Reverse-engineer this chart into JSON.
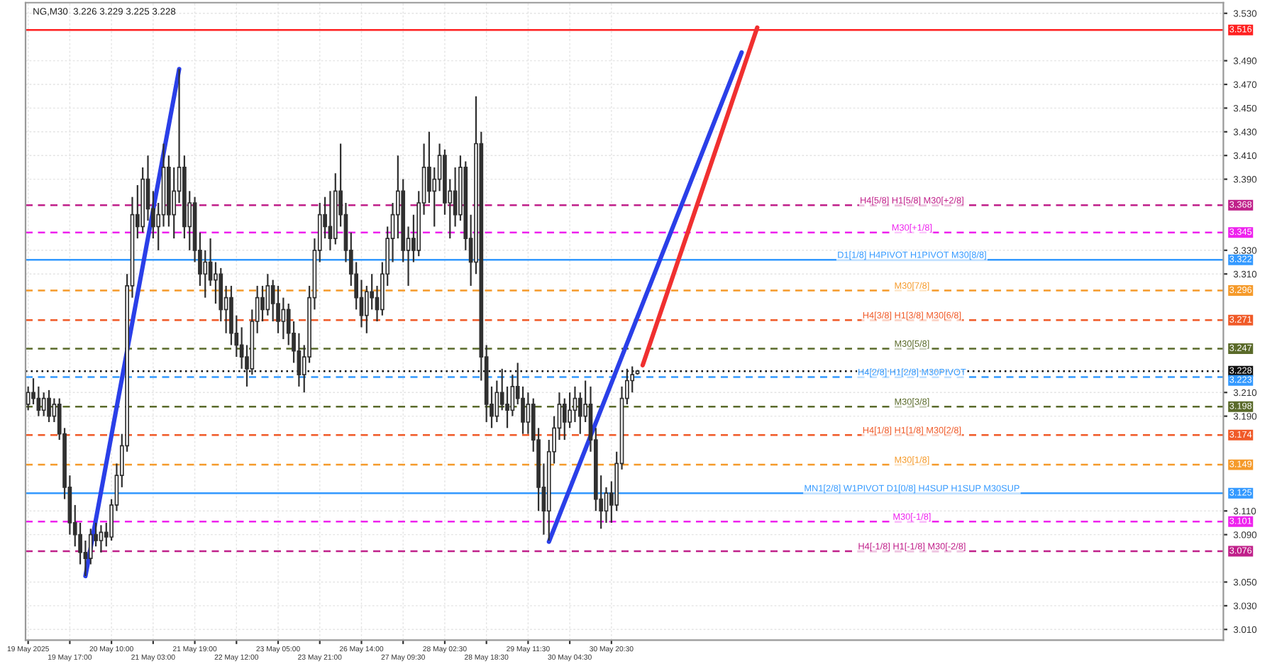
{
  "chart_data": {
    "type": "candlestick",
    "title": "NG,M30  3.226 3.229 3.225 3.228",
    "categories": [
      "19 May 2025",
      null,
      null,
      null,
      null,
      null,
      null,
      null,
      "19 May 17:00",
      null,
      null,
      null,
      null,
      null,
      null,
      null,
      "20 May 10:00",
      null,
      null,
      null,
      null,
      null,
      null,
      null,
      "21 May 03:00",
      null,
      null,
      null,
      null,
      null,
      null,
      null,
      "21 May 19:00",
      null,
      null,
      null,
      null,
      null,
      null,
      null,
      "22 May 12:00",
      null,
      null,
      null,
      null,
      null,
      null,
      null,
      "23 May 05:00",
      null,
      null,
      null,
      null,
      null,
      null,
      null,
      "23 May 21:00",
      null,
      null,
      null,
      null,
      null,
      null,
      null,
      "26 May 14:00",
      null,
      null,
      null,
      null,
      null,
      null,
      null,
      "27 May 09:30",
      null,
      null,
      null,
      null,
      null,
      null,
      null,
      "28 May 02:30",
      null,
      null,
      null,
      null,
      null,
      null,
      null,
      "28 May 18:30",
      null,
      null,
      null,
      null,
      null,
      null,
      null,
      "29 May 11:30",
      null,
      null,
      null,
      null,
      null,
      null,
      null,
      "30 May 04:30",
      null,
      null,
      null,
      null,
      null,
      null,
      null,
      "30 May 20:30",
      null,
      null,
      null,
      null,
      null,
      null,
      null,
      null,
      null,
      null,
      null,
      null,
      null,
      null,
      null,
      null,
      null,
      null,
      null,
      null,
      null,
      null,
      null,
      null,
      null,
      null,
      null,
      null,
      null,
      null,
      null,
      null,
      null,
      null,
      null,
      null,
      null,
      null,
      null,
      null,
      null,
      null,
      null,
      null,
      null,
      null,
      null,
      null,
      null,
      null,
      null,
      null,
      null,
      null,
      null,
      null,
      null,
      null,
      null,
      null,
      null,
      null,
      null,
      null,
      null,
      null,
      null,
      null,
      null,
      null,
      null,
      null,
      null,
      null,
      null,
      null,
      null,
      null,
      null,
      null,
      null,
      null,
      null,
      null,
      null,
      null,
      null,
      null,
      null,
      null,
      null,
      null,
      null,
      null,
      null,
      null,
      null,
      null,
      null,
      null,
      null,
      null,
      null,
      null,
      null,
      null,
      null,
      null,
      null,
      null,
      null,
      null,
      null,
      null,
      null,
      null,
      null
    ],
    "color": "#303030",
    "ohlc": [
      [
        3.2,
        3.215,
        3.195,
        3.21
      ],
      [
        3.21,
        3.222,
        3.2,
        3.205
      ],
      [
        3.205,
        3.215,
        3.19,
        3.195
      ],
      [
        3.195,
        3.21,
        3.19,
        3.205
      ],
      [
        3.205,
        3.212,
        3.185,
        3.19
      ],
      [
        3.19,
        3.205,
        3.185,
        3.2
      ],
      [
        3.2,
        3.205,
        3.17,
        3.175
      ],
      [
        3.175,
        3.18,
        3.12,
        3.13
      ],
      [
        3.13,
        3.14,
        3.09,
        3.1
      ],
      [
        3.1,
        3.115,
        3.08,
        3.09
      ],
      [
        3.09,
        3.1,
        3.065,
        3.075
      ],
      [
        3.075,
        3.085,
        3.055,
        3.07
      ],
      [
        3.07,
        3.095,
        3.065,
        3.09
      ],
      [
        3.09,
        3.1,
        3.08,
        3.085
      ],
      [
        3.085,
        3.098,
        3.075,
        3.092
      ],
      [
        3.092,
        3.1,
        3.08,
        3.088
      ],
      [
        3.088,
        3.12,
        3.085,
        3.115
      ],
      [
        3.115,
        3.15,
        3.11,
        3.14
      ],
      [
        3.14,
        3.175,
        3.13,
        3.165
      ],
      [
        3.165,
        3.31,
        3.16,
        3.3
      ],
      [
        3.3,
        3.375,
        3.29,
        3.36
      ],
      [
        3.36,
        3.385,
        3.34,
        3.35
      ],
      [
        3.35,
        3.4,
        3.345,
        3.39
      ],
      [
        3.39,
        3.41,
        3.355,
        3.365
      ],
      [
        3.365,
        3.38,
        3.34,
        3.35
      ],
      [
        3.35,
        3.37,
        3.33,
        3.36
      ],
      [
        3.36,
        3.42,
        3.35,
        3.4
      ],
      [
        3.4,
        3.41,
        3.35,
        3.36
      ],
      [
        3.36,
        3.4,
        3.34,
        3.38
      ],
      [
        3.38,
        3.483,
        3.37,
        3.4
      ],
      [
        3.4,
        3.41,
        3.34,
        3.35
      ],
      [
        3.35,
        3.38,
        3.33,
        3.37
      ],
      [
        3.37,
        3.375,
        3.32,
        3.33
      ],
      [
        3.33,
        3.345,
        3.3,
        3.31
      ],
      [
        3.31,
        3.33,
        3.29,
        3.32
      ],
      [
        3.32,
        3.34,
        3.3,
        3.305
      ],
      [
        3.305,
        3.32,
        3.285,
        3.31
      ],
      [
        3.31,
        3.315,
        3.27,
        3.28
      ],
      [
        3.28,
        3.3,
        3.26,
        3.29
      ],
      [
        3.29,
        3.3,
        3.25,
        3.26
      ],
      [
        3.26,
        3.275,
        3.24,
        3.25
      ],
      [
        3.25,
        3.265,
        3.23,
        3.24
      ],
      [
        3.24,
        3.25,
        3.215,
        3.23
      ],
      [
        3.23,
        3.28,
        3.225,
        3.27
      ],
      [
        3.27,
        3.3,
        3.26,
        3.29
      ],
      [
        3.29,
        3.3,
        3.27,
        3.28
      ],
      [
        3.28,
        3.31,
        3.275,
        3.3
      ],
      [
        3.3,
        3.305,
        3.27,
        3.285
      ],
      [
        3.285,
        3.3,
        3.26,
        3.27
      ],
      [
        3.27,
        3.29,
        3.255,
        3.28
      ],
      [
        3.28,
        3.285,
        3.25,
        3.26
      ],
      [
        3.26,
        3.27,
        3.235,
        3.245
      ],
      [
        3.245,
        3.26,
        3.215,
        3.225
      ],
      [
        3.225,
        3.25,
        3.21,
        3.24
      ],
      [
        3.24,
        3.3,
        3.235,
        3.29
      ],
      [
        3.29,
        3.34,
        3.28,
        3.33
      ],
      [
        3.33,
        3.37,
        3.32,
        3.36
      ],
      [
        3.36,
        3.375,
        3.34,
        3.35
      ],
      [
        3.35,
        3.38,
        3.33,
        3.34
      ],
      [
        3.34,
        3.395,
        3.335,
        3.38
      ],
      [
        3.38,
        3.42,
        3.35,
        3.36
      ],
      [
        3.36,
        3.37,
        3.32,
        3.33
      ],
      [
        3.33,
        3.345,
        3.3,
        3.31
      ],
      [
        3.31,
        3.32,
        3.28,
        3.29
      ],
      [
        3.29,
        3.305,
        3.265,
        3.275
      ],
      [
        3.275,
        3.3,
        3.26,
        3.295
      ],
      [
        3.295,
        3.31,
        3.28,
        3.29
      ],
      [
        3.29,
        3.3,
        3.27,
        3.28
      ],
      [
        3.28,
        3.32,
        3.275,
        3.31
      ],
      [
        3.31,
        3.35,
        3.3,
        3.34
      ],
      [
        3.34,
        3.37,
        3.32,
        3.36
      ],
      [
        3.36,
        3.41,
        3.34,
        3.38
      ],
      [
        3.38,
        3.39,
        3.32,
        3.33
      ],
      [
        3.33,
        3.35,
        3.3,
        3.34
      ],
      [
        3.34,
        3.36,
        3.32,
        3.33
      ],
      [
        3.33,
        3.38,
        3.325,
        3.37
      ],
      [
        3.37,
        3.42,
        3.36,
        3.4
      ],
      [
        3.4,
        3.43,
        3.37,
        3.38
      ],
      [
        3.38,
        3.4,
        3.35,
        3.39
      ],
      [
        3.39,
        3.42,
        3.38,
        3.41
      ],
      [
        3.41,
        3.415,
        3.36,
        3.37
      ],
      [
        3.37,
        3.39,
        3.34,
        3.38
      ],
      [
        3.38,
        3.4,
        3.35,
        3.36
      ],
      [
        3.36,
        3.41,
        3.355,
        3.4
      ],
      [
        3.4,
        3.405,
        3.33,
        3.34
      ],
      [
        3.34,
        3.36,
        3.3,
        3.32
      ],
      [
        3.32,
        3.46,
        3.31,
        3.42
      ],
      [
        3.42,
        3.43,
        3.22,
        3.24
      ],
      [
        3.24,
        3.25,
        3.185,
        3.2
      ],
      [
        3.2,
        3.215,
        3.18,
        3.19
      ],
      [
        3.19,
        3.22,
        3.185,
        3.21
      ],
      [
        3.21,
        3.23,
        3.195,
        3.2
      ],
      [
        3.2,
        3.215,
        3.18,
        3.195
      ],
      [
        3.195,
        3.225,
        3.19,
        3.215
      ],
      [
        3.215,
        3.235,
        3.2,
        3.205
      ],
      [
        3.205,
        3.215,
        3.175,
        3.185
      ],
      [
        3.185,
        3.21,
        3.175,
        3.2
      ],
      [
        3.2,
        3.205,
        3.16,
        3.17
      ],
      [
        3.17,
        3.18,
        3.11,
        3.13
      ],
      [
        3.13,
        3.15,
        3.09,
        3.11
      ],
      [
        3.11,
        3.17,
        3.085,
        3.16
      ],
      [
        3.16,
        3.19,
        3.15,
        3.18
      ],
      [
        3.18,
        3.21,
        3.17,
        3.2
      ],
      [
        3.2,
        3.205,
        3.17,
        3.185
      ],
      [
        3.185,
        3.21,
        3.18,
        3.195
      ],
      [
        3.195,
        3.215,
        3.185,
        3.205
      ],
      [
        3.205,
        3.21,
        3.175,
        3.19
      ],
      [
        3.19,
        3.22,
        3.185,
        3.2
      ],
      [
        3.2,
        3.215,
        3.16,
        3.17
      ],
      [
        3.17,
        3.18,
        3.11,
        3.12
      ],
      [
        3.12,
        3.14,
        3.095,
        3.11
      ],
      [
        3.11,
        3.13,
        3.1,
        3.125
      ],
      [
        3.125,
        3.135,
        3.1,
        3.115
      ],
      [
        3.115,
        3.16,
        3.11,
        3.15
      ],
      [
        3.15,
        3.215,
        3.145,
        3.205
      ],
      [
        3.205,
        3.23,
        3.2,
        3.22
      ],
      [
        3.22,
        3.232,
        3.21,
        3.225
      ],
      [
        3.226,
        3.229,
        3.225,
        3.228
      ],
      null,
      null,
      null,
      null,
      null,
      null,
      null,
      null,
      null,
      null,
      null,
      null,
      null,
      null,
      null,
      null,
      null,
      null,
      null,
      null,
      null,
      null,
      null,
      null,
      null,
      null,
      null,
      null,
      null,
      null,
      null,
      null,
      null,
      null,
      null,
      null,
      null,
      null,
      null,
      null,
      null,
      null,
      null,
      null,
      null,
      null,
      null,
      null,
      null,
      null,
      null,
      null,
      null,
      null,
      null,
      null,
      null,
      null,
      null,
      null,
      null,
      null,
      null,
      null,
      null,
      null,
      null,
      null,
      null,
      null,
      null,
      null,
      null,
      null,
      null,
      null,
      null,
      null,
      null,
      null,
      null,
      null,
      null,
      null,
      null,
      null,
      null,
      null,
      null,
      null,
      null,
      null,
      null,
      null,
      null,
      null,
      null,
      null,
      null,
      null,
      null,
      null,
      null,
      null,
      null,
      null,
      null,
      null,
      null,
      null,
      null,
      null
    ],
    "series": [
      {
        "type": "line",
        "color": "#2a3fe8",
        "values": [
          null,
          null,
          null,
          null,
          null,
          null,
          null,
          null,
          null,
          null,
          null,
          3.055,
          null,
          null,
          null,
          null,
          null,
          null,
          null,
          null,
          null,
          null,
          null,
          null,
          null,
          null,
          null,
          null,
          null,
          3.483,
          null,
          null,
          null,
          null,
          null,
          null,
          null,
          null,
          null,
          null,
          null,
          null,
          null,
          null,
          null,
          null,
          null,
          null,
          null,
          null,
          null,
          null,
          null,
          null,
          null,
          null,
          null,
          null,
          null,
          null,
          null,
          null,
          null,
          null,
          null,
          null,
          null,
          null,
          null,
          null,
          null,
          null,
          null,
          null,
          null,
          null,
          null,
          null,
          null,
          null,
          null,
          null,
          null,
          null,
          null,
          null,
          null,
          null,
          null,
          null,
          null,
          null,
          null,
          null,
          null,
          null,
          null,
          null,
          null,
          null,
          null,
          null,
          null,
          null,
          null,
          null,
          null,
          null,
          null,
          null,
          null,
          null,
          null,
          null,
          null,
          null,
          null,
          null,
          null,
          null,
          null,
          null,
          null,
          null,
          null,
          null,
          null,
          null,
          null,
          null,
          null,
          null,
          null,
          null,
          null,
          null,
          null,
          null,
          null,
          null,
          null,
          null,
          null,
          null,
          null,
          null,
          null,
          null,
          null,
          null,
          null,
          null,
          null,
          null,
          null,
          null,
          null,
          null,
          null,
          null,
          null,
          null,
          null,
          null,
          null,
          null,
          null,
          null,
          null,
          null,
          null,
          null,
          null,
          null,
          null,
          null,
          null,
          null,
          null,
          null,
          null,
          null,
          null,
          null,
          null,
          null,
          null,
          null,
          null,
          null,
          null,
          null,
          null,
          null,
          null,
          null,
          null,
          null,
          null,
          null,
          null,
          null,
          null,
          null,
          null,
          null,
          null,
          null,
          null,
          null,
          null,
          null,
          null,
          null,
          null,
          null,
          null,
          null,
          null,
          null,
          null,
          null,
          null,
          null,
          null,
          null,
          null,
          null,
          null,
          null
        ]
      },
      {
        "type": "line",
        "color": "#2a3fe8",
        "values": [
          null,
          null,
          null,
          null,
          null,
          null,
          null,
          null,
          null,
          null,
          null,
          null,
          null,
          null,
          null,
          null,
          null,
          null,
          null,
          null,
          null,
          null,
          null,
          null,
          null,
          null,
          null,
          null,
          null,
          null,
          null,
          null,
          null,
          null,
          null,
          null,
          null,
          null,
          null,
          null,
          null,
          null,
          null,
          null,
          null,
          null,
          null,
          null,
          null,
          null,
          null,
          null,
          null,
          null,
          null,
          null,
          null,
          null,
          null,
          null,
          null,
          null,
          null,
          null,
          null,
          null,
          null,
          null,
          null,
          null,
          null,
          null,
          null,
          null,
          null,
          null,
          null,
          null,
          null,
          null,
          null,
          null,
          null,
          null,
          null,
          null,
          null,
          null,
          null,
          null,
          null,
          null,
          null,
          null,
          null,
          null,
          null,
          null,
          null,
          null,
          3.084,
          null,
          null,
          null,
          null,
          null,
          null,
          null,
          null,
          null,
          null,
          null,
          null,
          null,
          null,
          null,
          null,
          null,
          null,
          null,
          null,
          null,
          null,
          null,
          null,
          null,
          null,
          null,
          null,
          null,
          null,
          null,
          null,
          null,
          null,
          null,
          null,
          3.497,
          null,
          null,
          null,
          null,
          null,
          null,
          null,
          null,
          null,
          null,
          null,
          null,
          null,
          null,
          null,
          null,
          null,
          null,
          null,
          null,
          null,
          null,
          null,
          null,
          null,
          null,
          null,
          null,
          null,
          null,
          null,
          null,
          null,
          null,
          null,
          null,
          null,
          null,
          null,
          null,
          null,
          null,
          null,
          null,
          null,
          null,
          null,
          null,
          null,
          null,
          null,
          null,
          null,
          null,
          null,
          null,
          null,
          null,
          null,
          null,
          null,
          null,
          null,
          null,
          null,
          null,
          null,
          null,
          null,
          null,
          null,
          null,
          null,
          null,
          null,
          null,
          null,
          null,
          null,
          null,
          null,
          null,
          null,
          null,
          null,
          null,
          null,
          null,
          null,
          null,
          null,
          null
        ]
      },
      {
        "type": "line",
        "color": "#f03030",
        "values": [
          null,
          null,
          null,
          null,
          null,
          null,
          null,
          null,
          null,
          null,
          null,
          null,
          null,
          null,
          null,
          null,
          null,
          null,
          null,
          null,
          null,
          null,
          null,
          null,
          null,
          null,
          null,
          null,
          null,
          null,
          null,
          null,
          null,
          null,
          null,
          null,
          null,
          null,
          null,
          null,
          null,
          null,
          null,
          null,
          null,
          null,
          null,
          null,
          null,
          null,
          null,
          null,
          null,
          null,
          null,
          null,
          null,
          null,
          null,
          null,
          null,
          null,
          null,
          null,
          null,
          null,
          null,
          null,
          null,
          null,
          null,
          null,
          null,
          null,
          null,
          null,
          null,
          null,
          null,
          null,
          null,
          null,
          null,
          null,
          null,
          null,
          null,
          null,
          null,
          null,
          null,
          null,
          null,
          null,
          null,
          null,
          null,
          null,
          null,
          null,
          null,
          null,
          null,
          null,
          null,
          null,
          null,
          null,
          null,
          null,
          null,
          null,
          null,
          null,
          null,
          null,
          null,
          null,
          3.233,
          null,
          null,
          null,
          null,
          null,
          null,
          null,
          null,
          null,
          null,
          null,
          null,
          null,
          null,
          null,
          null,
          null,
          null,
          null,
          null,
          null,
          3.518,
          null,
          null,
          null,
          null,
          null,
          null,
          null,
          null,
          null,
          null,
          null,
          null,
          null,
          null,
          null,
          null,
          null,
          null,
          null,
          null,
          null,
          null,
          null,
          null,
          null,
          null,
          null,
          null,
          null,
          null,
          null,
          null,
          null,
          null,
          null,
          null,
          null,
          null,
          null,
          null,
          null,
          null,
          null,
          null,
          null,
          null,
          null,
          null,
          null,
          null,
          null,
          null,
          null,
          null,
          null,
          null,
          null,
          null,
          null,
          null,
          null,
          null,
          null,
          null,
          null,
          null,
          null,
          null,
          null,
          null,
          null,
          null,
          null,
          null,
          null,
          null,
          null,
          null,
          null,
          null,
          null,
          null,
          null,
          null,
          null,
          null,
          null,
          null,
          null
        ]
      }
    ],
    "ylim": [
      3.001,
      3.539
    ],
    "yticks": [
      {
        "value": 3.53,
        "label": "3.530"
      },
      {
        "value": 3.49,
        "label": "3.490"
      },
      {
        "value": 3.47,
        "label": "3.470"
      },
      {
        "value": 3.45,
        "label": "3.450"
      },
      {
        "value": 3.43,
        "label": "3.430"
      },
      {
        "value": 3.41,
        "label": "3.410"
      },
      {
        "value": 3.39,
        "label": "3.390"
      },
      {
        "value": 3.33,
        "label": "3.330"
      },
      {
        "value": 3.31,
        "label": "3.310"
      },
      {
        "value": 3.21,
        "label": "3.210"
      },
      {
        "value": 3.19,
        "label": "3.190"
      },
      {
        "value": 3.11,
        "label": "3.110"
      },
      {
        "value": 3.09,
        "label": "3.090"
      },
      {
        "value": 3.05,
        "label": "3.050"
      },
      {
        "value": 3.03,
        "label": "3.030"
      },
      {
        "value": 3.01,
        "label": "3.010"
      }
    ],
    "grid": true,
    "annotations": [
      "3.516",
      "3.368",
      "3.345",
      "3.322",
      "3.296",
      "3.271",
      "3.247",
      "3.228",
      "3.223",
      "3.198",
      "3.174",
      "3.149",
      "3.125",
      "3.101",
      "3.076"
    ],
    "ref_lines": [
      {
        "axis": "y",
        "value": 3.516,
        "color": "#ff2020",
        "line_style": "solid"
      },
      {
        "axis": "y",
        "value": 3.368,
        "color": "#c0208a",
        "line_style": "dashed",
        "label": "H4[5/8] H1[5/8] M30[+2/8]"
      },
      {
        "axis": "y",
        "value": 3.345,
        "color": "#ee22ee",
        "line_style": "dashed",
        "label": "M30[+1/8]"
      },
      {
        "axis": "y",
        "value": 3.322,
        "color": "#3399ff",
        "line_style": "solid",
        "label": "D1[1/8] H4PIVOT H1PIVOT M30[8/8]"
      },
      {
        "axis": "y",
        "value": 3.296,
        "color": "#f59a2a",
        "line_style": "dashed",
        "label": "M30[7/8]"
      },
      {
        "axis": "y",
        "value": 3.271,
        "color": "#f05a28",
        "line_style": "dashed",
        "label": "H4[3/8] H1[3/8] M30[6/8]"
      },
      {
        "axis": "y",
        "value": 3.247,
        "color": "#5a6a2a",
        "line_style": "dashed",
        "label": "M30[5/8]"
      },
      {
        "axis": "y",
        "value": 3.228,
        "color": "#111111",
        "line_style": "dotted"
      },
      {
        "axis": "y",
        "value": 3.223,
        "color": "#3399ff",
        "line_style": "dashed",
        "label": "H4[2/8] H1[2/8] M30PIVOT"
      },
      {
        "axis": "y",
        "value": 3.198,
        "color": "#5a6a2a",
        "line_style": "dashed",
        "label": "M30[3/8]"
      },
      {
        "axis": "y",
        "value": 3.174,
        "color": "#f05a28",
        "line_style": "dashed",
        "label": "H4[1/8] H1[1/8] M30[2/8]"
      },
      {
        "axis": "y",
        "value": 3.149,
        "color": "#f59a2a",
        "line_style": "dashed",
        "label": "M30[1/8]"
      },
      {
        "axis": "y",
        "value": 3.125,
        "color": "#3399ff",
        "line_style": "solid",
        "label": "MN1[2/8] W1PIVOT D1[0/8] H4SUP H1SUP M30SUP"
      },
      {
        "axis": "y",
        "value": 3.101,
        "color": "#ee22ee",
        "line_style": "dashed",
        "label": "M30[-1/8]"
      },
      {
        "axis": "y",
        "value": 3.076,
        "color": "#c0208a",
        "line_style": "dashed",
        "label": "H4[-1/8] H1[-1/8] M30[-2/8]"
      }
    ]
  }
}
